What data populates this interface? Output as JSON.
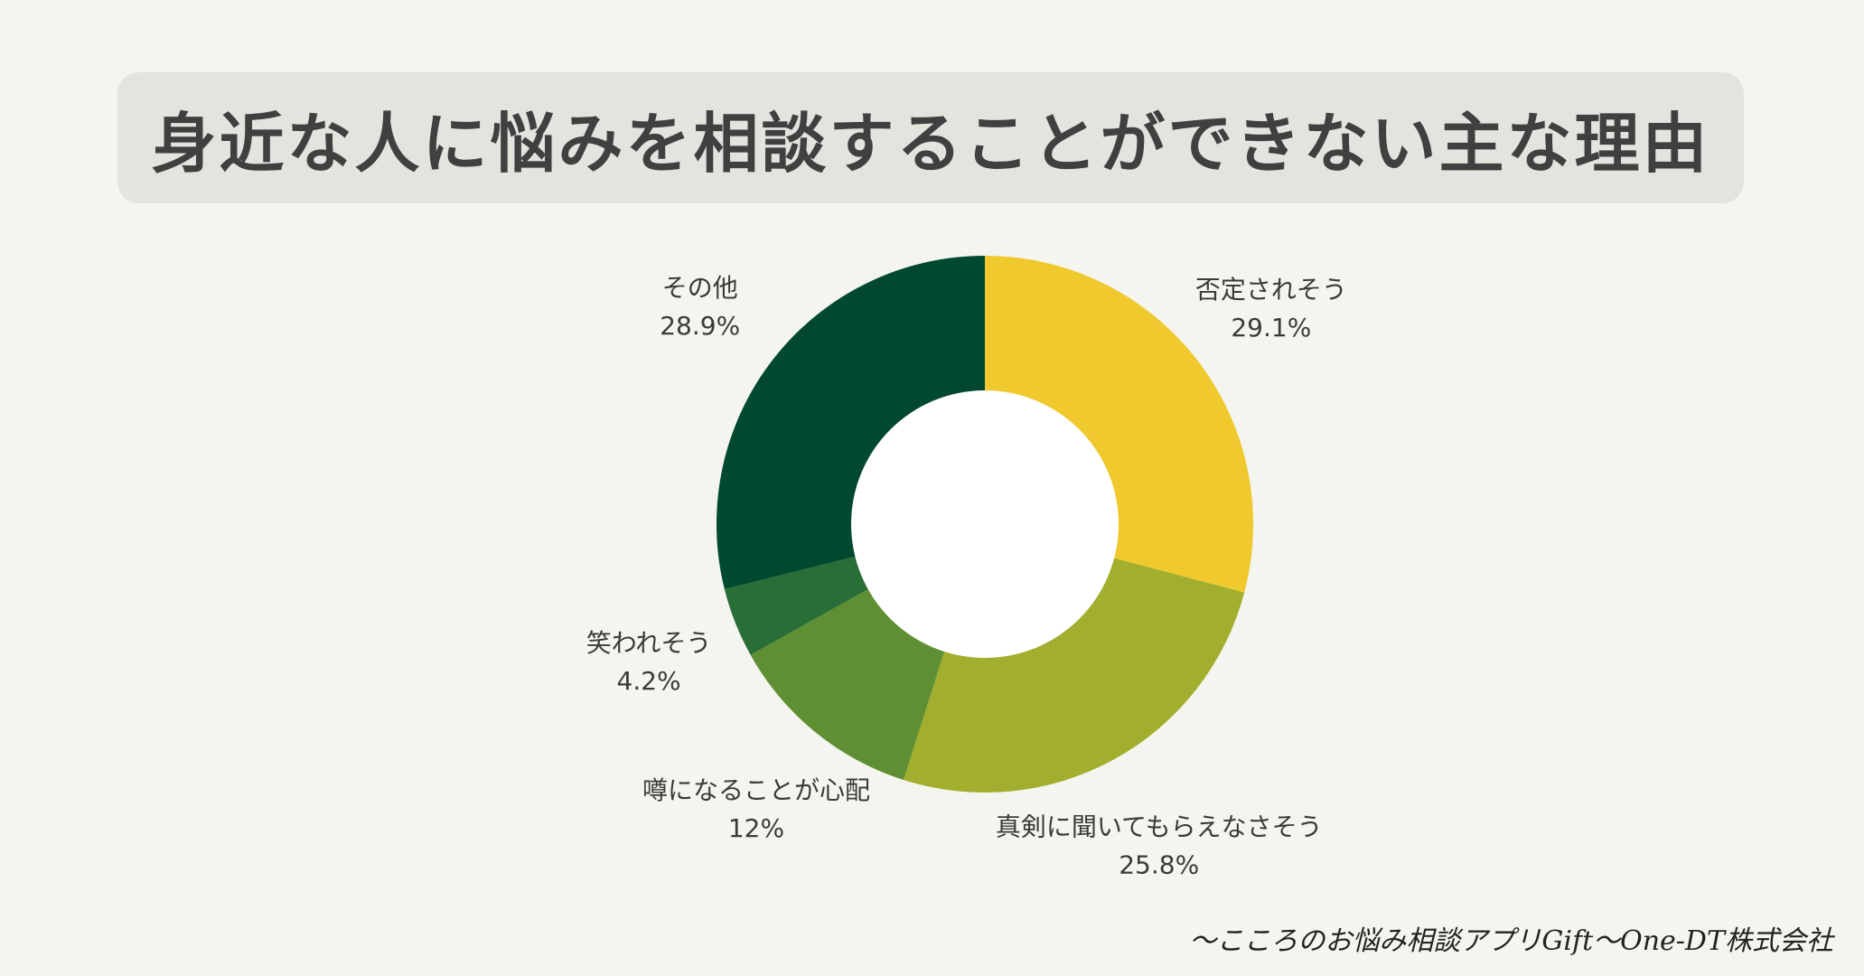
{
  "title": "身近な人に悩みを相談することができない主な理由",
  "source": "～こころのお悩み相談アプリGift～One-DT株式会社",
  "chart_data": {
    "type": "pie",
    "donut": true,
    "title": "身近な人に悩みを相談することができない主な理由",
    "slices": [
      {
        "label": "否定されそう",
        "value": 29.1,
        "value_label": "29.1%",
        "color": "#efc92e"
      },
      {
        "label": "真剣に聞いてもらえなさそう",
        "value": 25.8,
        "value_label": "25.8%",
        "color": "#a2ae2d"
      },
      {
        "label": "噂になることが心配",
        "value": 12,
        "value_label": "12%",
        "color": "#5f8f33"
      },
      {
        "label": "笑われそう",
        "value": 4.2,
        "value_label": "4.2%",
        "color": "#2a6e37"
      },
      {
        "label": "その他",
        "value": 28.9,
        "value_label": "28.9%",
        "color": "#004930"
      }
    ]
  }
}
